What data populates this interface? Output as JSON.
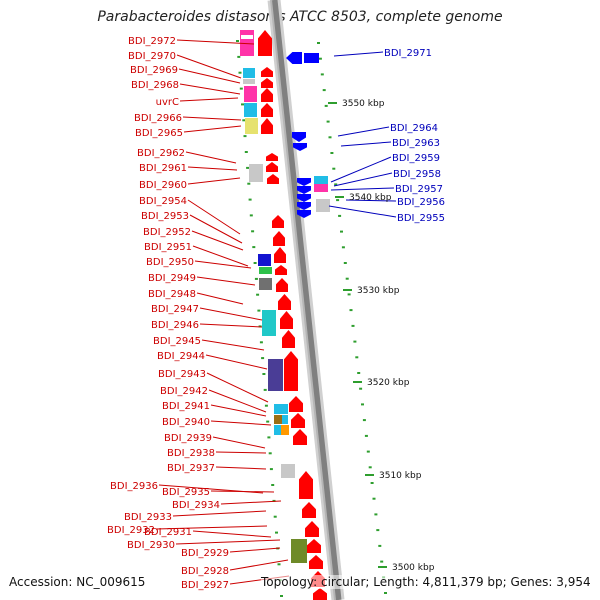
{
  "title": "Parabacteroides distasonis ATCC 8503, complete genome",
  "footer": {
    "accession": "Accession: NC_009615",
    "topology": "Topology: circular; Length: 4,811,379 bp; Genes: 3,954"
  },
  "colors": {
    "backbone": "#808080",
    "plus_strand_arrow": "#ff0000",
    "minus_strand_arrow": "#0000ff",
    "tick": "#2e9e2e",
    "label_plus": "#cc0000",
    "label_minus": "#0000bb"
  },
  "scale_labels": [
    "3550 kbp",
    "3540 kbp",
    "3530 kbp",
    "3520 kbp",
    "3510 kbp",
    "3500 kbp"
  ],
  "genes_left": [
    "BDI_2972",
    "BDI_2970",
    "BDI_2969",
    "BDI_2968",
    "uvrC",
    "BDI_2966",
    "BDI_2965",
    "BDI_2962",
    "BDI_2961",
    "BDI_2960",
    "BDI_2954",
    "BDI_2953",
    "BDI_2952",
    "BDI_2951",
    "BDI_2950",
    "BDI_2949",
    "BDI_2948",
    "BDI_2947",
    "BDI_2946",
    "BDI_2945",
    "BDI_2944",
    "BDI_2943",
    "BDI_2942",
    "BDI_2941",
    "BDI_2940",
    "BDI_2939",
    "BDI_2938",
    "BDI_2937",
    "BDI_2936",
    "BDI_2935",
    "BDI_2934",
    "BDI_2933",
    "BDI_2932",
    "BDI_2931",
    "BDI_2930",
    "BDI_2929",
    "BDI_2928",
    "BDI_2927"
  ],
  "genes_right": [
    "BDI_2971",
    "BDI_2964",
    "BDI_2963",
    "BDI_2959",
    "BDI_2958",
    "BDI_2957",
    "BDI_2956",
    "BDI_2955"
  ]
}
